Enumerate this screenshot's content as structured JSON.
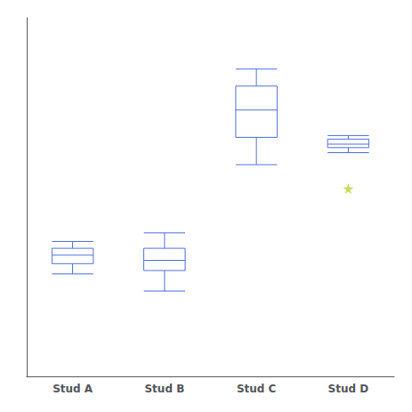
{
  "chart_data": {
    "type": "boxplot",
    "categories": [
      "Stud A",
      "Stud B",
      "Stud C",
      "Stud D"
    ],
    "values": [
      [
        3.0,
        3.3,
        3.55,
        3.75,
        3.95
      ],
      [
        2.5,
        3.1,
        3.4,
        3.75,
        4.2
      ],
      [
        6.2,
        7.0,
        7.8,
        8.5,
        9.0
      ],
      [
        6.55,
        6.7,
        6.8,
        6.95,
        7.05
      ]
    ],
    "fliers": [
      [],
      [],
      [],
      [
        5.5
      ]
    ],
    "ylim": [
      0.0,
      10.5
    ],
    "yticks": [],
    "grid": false,
    "tick_labels": "x",
    "marker": "star"
  }
}
